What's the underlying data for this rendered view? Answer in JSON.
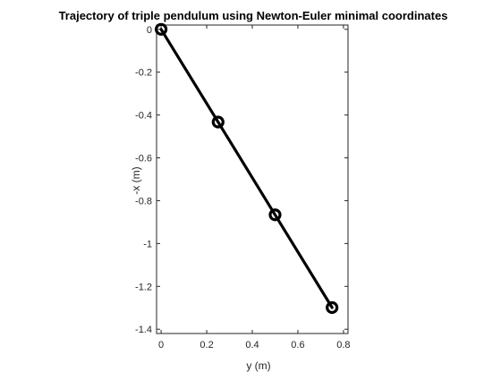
{
  "chart_data": {
    "type": "line",
    "title": "Trajectory of triple pendulum using Newton-Euler minimal coordinates",
    "xlabel": "y (m)",
    "ylabel": "-x (m)",
    "xlim": [
      -0.02,
      0.82
    ],
    "ylim": [
      -1.42,
      0.02
    ],
    "xticks": [
      0,
      0.2,
      0.4,
      0.6,
      0.8
    ],
    "xtick_labels": [
      "0",
      "0.2",
      "0.4",
      "0.6",
      "0.8"
    ],
    "yticks": [
      0,
      -0.2,
      -0.4,
      -0.6,
      -0.8,
      -1,
      -1.2,
      -1.4
    ],
    "ytick_labels": [
      "0",
      "-0.2",
      "-0.4",
      "-0.6",
      "-0.8",
      "-1",
      "-1.2",
      "-1.4"
    ],
    "grid": false,
    "series": [
      {
        "x": [
          0,
          0.25,
          0.5,
          0.75
        ],
        "y": [
          0,
          -0.433,
          -0.866,
          -1.299
        ],
        "color": "#000000",
        "marker": "circle"
      }
    ]
  }
}
